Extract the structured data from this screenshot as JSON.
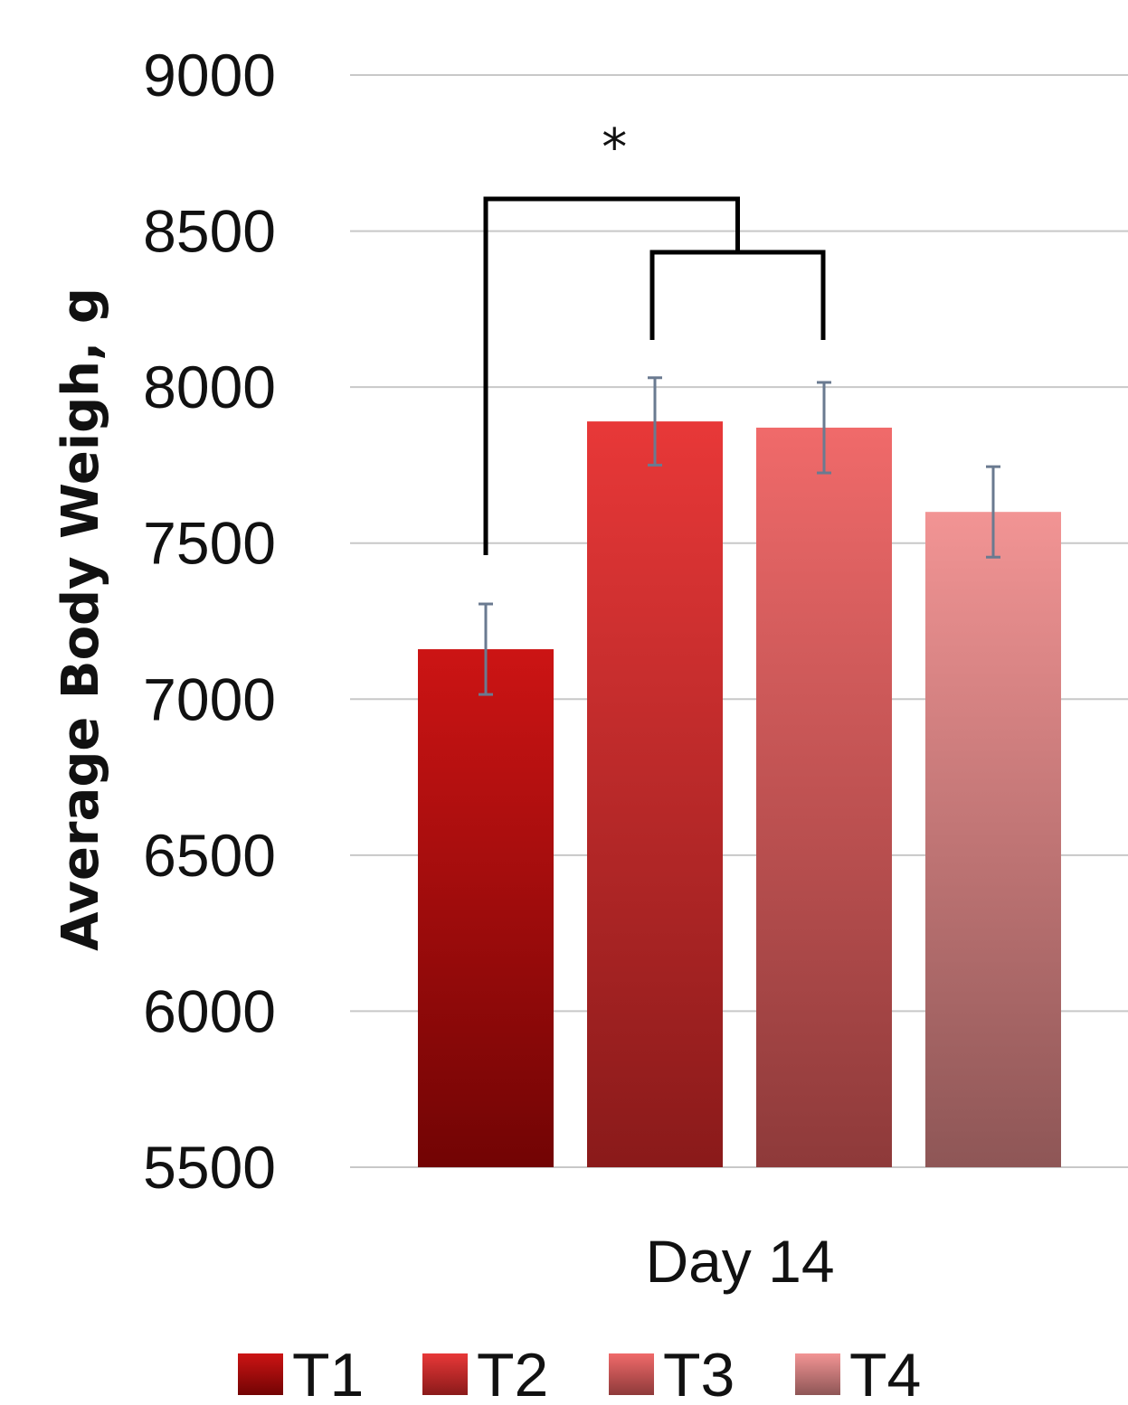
{
  "chart_data": {
    "type": "bar",
    "categories": [
      "Day 14"
    ],
    "series": [
      {
        "name": "T1",
        "value": 7160,
        "error": 145,
        "color_top": "#cc1414",
        "color_bottom": "#720404"
      },
      {
        "name": "T2",
        "value": 7890,
        "error": 140,
        "color_top": "#e83838",
        "color_bottom": "#8a1a1a"
      },
      {
        "name": "T3",
        "value": 7870,
        "error": 145,
        "color_top": "#f06a6a",
        "color_bottom": "#8e3a3a"
      },
      {
        "name": "T4",
        "value": 7600,
        "error": 145,
        "color_top": "#f29494",
        "color_bottom": "#8e5656"
      }
    ],
    "ylabel": "Average Body Weigh, g",
    "xlabel": "",
    "ylim": [
      5500,
      9000
    ],
    "yticks": [
      5500,
      6000,
      6500,
      7000,
      7500,
      8000,
      8500,
      9000
    ],
    "grid": true,
    "legend": "bottom",
    "annotation": "*",
    "error_bar_color": "#6a7a90"
  }
}
